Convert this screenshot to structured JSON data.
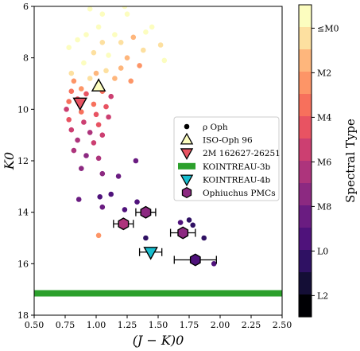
{
  "chart_data": {
    "type": "scatter",
    "xlabel": "(J − K)0",
    "ylabel": "K0",
    "xlim": [
      0.5,
      2.5
    ],
    "ylim": [
      18,
      6
    ],
    "y_inverted": true,
    "grid": false,
    "legend_position": "center-right",
    "x_ticks": [
      "0.50",
      "0.75",
      "1.00",
      "1.25",
      "1.50",
      "1.75",
      "2.00",
      "2.25",
      "2.50"
    ],
    "y_ticks": [
      "6",
      "8",
      "10",
      "12",
      "14",
      "16",
      "18"
    ],
    "colorbar": {
      "label": "Spectral Type",
      "ticks": [
        "≤M0",
        "M2",
        "M4",
        "M6",
        "M8",
        "L0",
        "L2"
      ],
      "colors": [
        "#fcfdbf",
        "#fde0a0",
        "#feb67c",
        "#fd9567",
        "#f7705c",
        "#e85362",
        "#cc3f71",
        "#ad347c",
        "#8c2981",
        "#6a1c81",
        "#4f127b",
        "#2f1163",
        "#140e36",
        "#000004"
      ]
    },
    "legend": [
      {
        "label": "ρ Oph",
        "marker": "dot"
      },
      {
        "label": "ISO-Oph 96",
        "marker": "triangle-up"
      },
      {
        "label": "2M 162627-26251",
        "marker": "triangle-down"
      },
      {
        "label": "KOINTREAU-3b",
        "marker": "band"
      },
      {
        "label": "KOINTREAU-4b",
        "marker": "triangle-down"
      },
      {
        "label": "Ophiuchus PMCs",
        "marker": "hexagon"
      }
    ],
    "series": [
      {
        "name": "ρ Oph",
        "points": [
          {
            "x": 0.95,
            "y": 6.1,
            "c": 0
          },
          {
            "x": 1.05,
            "y": 6.3,
            "c": 0
          },
          {
            "x": 1.23,
            "y": 6.0,
            "c": 0
          },
          {
            "x": 1.25,
            "y": 6.3,
            "c": 0
          },
          {
            "x": 1.02,
            "y": 6.8,
            "c": 0
          },
          {
            "x": 0.92,
            "y": 7.1,
            "c": 0
          },
          {
            "x": 1.15,
            "y": 7.1,
            "c": 0
          },
          {
            "x": 0.85,
            "y": 7.3,
            "c": 0
          },
          {
            "x": 1.05,
            "y": 7.4,
            "c": 1
          },
          {
            "x": 1.2,
            "y": 7.4,
            "c": 1
          },
          {
            "x": 0.78,
            "y": 7.6,
            "c": 0
          },
          {
            "x": 0.98,
            "y": 7.8,
            "c": 1
          },
          {
            "x": 1.1,
            "y": 7.9,
            "c": 0
          },
          {
            "x": 1.3,
            "y": 7.2,
            "c": 2
          },
          {
            "x": 1.38,
            "y": 7.7,
            "c": 1
          },
          {
            "x": 1.25,
            "y": 8.0,
            "c": 2
          },
          {
            "x": 1.4,
            "y": 7.0,
            "c": 0
          },
          {
            "x": 1.45,
            "y": 6.8,
            "c": 0
          },
          {
            "x": 1.52,
            "y": 7.5,
            "c": 1
          },
          {
            "x": 1.35,
            "y": 8.3,
            "c": 3
          },
          {
            "x": 1.2,
            "y": 8.4,
            "c": 2
          },
          {
            "x": 1.08,
            "y": 8.5,
            "c": 1
          },
          {
            "x": 0.9,
            "y": 8.2,
            "c": 0
          },
          {
            "x": 0.8,
            "y": 8.6,
            "c": 1
          },
          {
            "x": 0.82,
            "y": 8.9,
            "c": 3
          },
          {
            "x": 0.95,
            "y": 8.8,
            "c": 1
          },
          {
            "x": 1.0,
            "y": 8.6,
            "c": 2
          },
          {
            "x": 1.15,
            "y": 8.8,
            "c": 2
          },
          {
            "x": 1.28,
            "y": 8.9,
            "c": 3
          },
          {
            "x": 0.88,
            "y": 9.2,
            "c": 3
          },
          {
            "x": 0.8,
            "y": 9.3,
            "c": 4
          },
          {
            "x": 0.92,
            "y": 9.4,
            "c": 5
          },
          {
            "x": 1.05,
            "y": 9.3,
            "c": 4
          },
          {
            "x": 1.12,
            "y": 9.5,
            "c": 6
          },
          {
            "x": 0.78,
            "y": 9.7,
            "c": 4
          },
          {
            "x": 0.85,
            "y": 9.6,
            "c": 5
          },
          {
            "x": 0.98,
            "y": 9.8,
            "c": 4
          },
          {
            "x": 1.08,
            "y": 9.9,
            "c": 5
          },
          {
            "x": 0.76,
            "y": 10.0,
            "c": 6
          },
          {
            "x": 0.88,
            "y": 10.1,
            "c": 4
          },
          {
            "x": 1.0,
            "y": 10.2,
            "c": 5
          },
          {
            "x": 1.1,
            "y": 10.3,
            "c": 6
          },
          {
            "x": 0.78,
            "y": 10.4,
            "c": 5
          },
          {
            "x": 0.9,
            "y": 10.5,
            "c": 6
          },
          {
            "x": 1.02,
            "y": 10.6,
            "c": 5
          },
          {
            "x": 0.8,
            "y": 10.8,
            "c": 6
          },
          {
            "x": 0.95,
            "y": 10.9,
            "c": 7
          },
          {
            "x": 1.05,
            "y": 11.0,
            "c": 6
          },
          {
            "x": 0.85,
            "y": 11.2,
            "c": 7
          },
          {
            "x": 0.98,
            "y": 11.3,
            "c": 6
          },
          {
            "x": 0.82,
            "y": 11.6,
            "c": 7
          },
          {
            "x": 0.92,
            "y": 11.8,
            "c": 8
          },
          {
            "x": 1.02,
            "y": 11.9,
            "c": 7
          },
          {
            "x": 0.88,
            "y": 12.3,
            "c": 8
          },
          {
            "x": 1.05,
            "y": 12.5,
            "c": 8
          },
          {
            "x": 1.18,
            "y": 12.6,
            "c": 9
          },
          {
            "x": 1.32,
            "y": 12.0,
            "c": 9
          },
          {
            "x": 1.55,
            "y": 8.1,
            "c": 0
          },
          {
            "x": 0.86,
            "y": 13.5,
            "c": 9
          },
          {
            "x": 1.03,
            "y": 13.4,
            "c": 10
          },
          {
            "x": 1.12,
            "y": 13.3,
            "c": 10
          },
          {
            "x": 1.05,
            "y": 13.8,
            "c": 9
          },
          {
            "x": 1.23,
            "y": 13.9,
            "c": 10
          },
          {
            "x": 1.33,
            "y": 13.6,
            "c": 10
          },
          {
            "x": 1.42,
            "y": 14.0,
            "c": 10
          },
          {
            "x": 1.02,
            "y": 14.9,
            "c": 3
          },
          {
            "x": 1.4,
            "y": 15.0,
            "c": 11
          },
          {
            "x": 1.75,
            "y": 14.3,
            "c": 11
          },
          {
            "x": 1.78,
            "y": 14.5,
            "c": 11
          },
          {
            "x": 1.68,
            "y": 14.4,
            "c": 10
          },
          {
            "x": 1.87,
            "y": 15.0,
            "c": 11
          },
          {
            "x": 1.95,
            "y": 16.0,
            "c": 10
          }
        ]
      },
      {
        "name": "ISO-Oph 96",
        "x": 1.02,
        "y": 9.1,
        "c": 0
      },
      {
        "name": "2M 162627-26251",
        "x": 0.87,
        "y": 9.75,
        "c": 5
      },
      {
        "name": "KOINTREAU-3b",
        "y": 17.15
      },
      {
        "name": "KOINTREAU-4b",
        "x": 1.44,
        "y": 15.55,
        "xerr": 0.09,
        "c": 0
      },
      {
        "name": "Ophiuchus PMCs",
        "points": [
          {
            "x": 1.4,
            "y": 14.0,
            "xerr": 0.08,
            "c": 8
          },
          {
            "x": 1.22,
            "y": 14.45,
            "xerr": 0.08,
            "c": 7
          },
          {
            "x": 1.7,
            "y": 14.8,
            "xerr": 0.1,
            "c": 8
          },
          {
            "x": 1.8,
            "y": 15.85,
            "xerr": 0.17,
            "c": 10
          }
        ]
      }
    ]
  }
}
